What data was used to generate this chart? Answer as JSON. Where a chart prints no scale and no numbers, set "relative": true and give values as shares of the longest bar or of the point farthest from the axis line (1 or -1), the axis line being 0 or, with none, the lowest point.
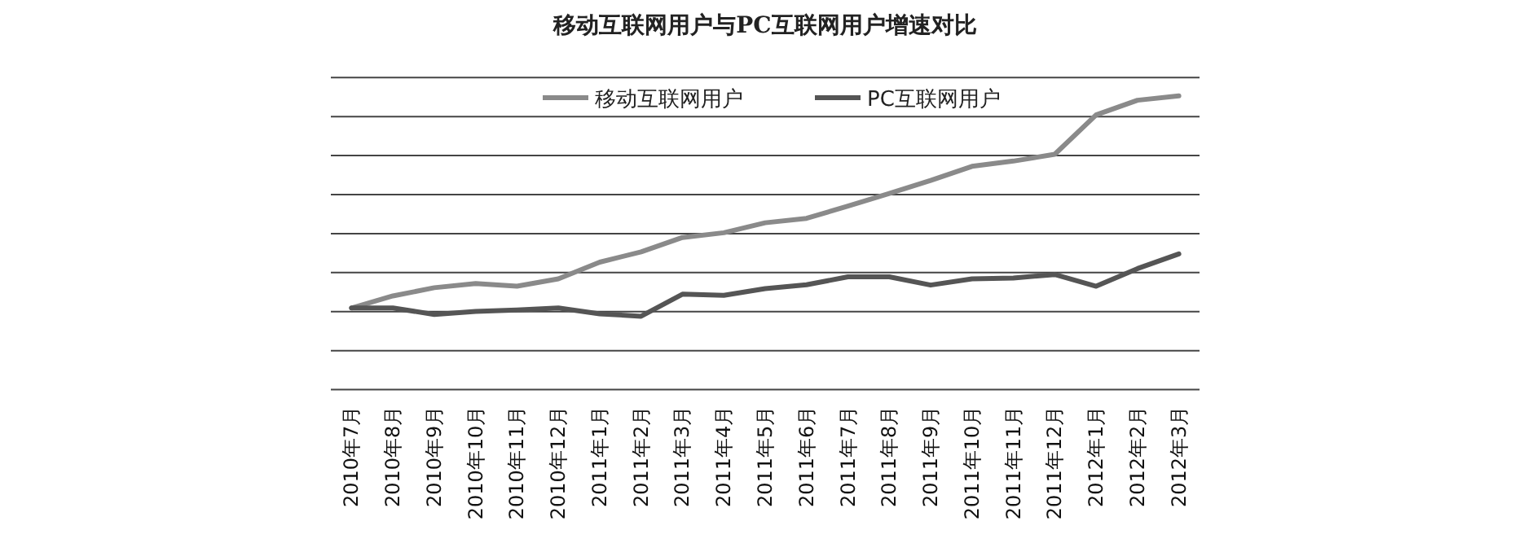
{
  "chart_data": {
    "type": "line",
    "title": "移动互联网用户与PC互联网用户增速对比",
    "relative": true,
    "grid": "y",
    "legend": "top",
    "marker": "none",
    "line_style": "solid",
    "categories": [
      "2010年7月",
      "2010年8月",
      "2010年9月",
      "2010年10月",
      "2010年11月",
      "2010年12月",
      "2011年1月",
      "2011年2月",
      "2011年3月",
      "2011年4月",
      "2011年5月",
      "2011年6月",
      "2011年7月",
      "2011年8月",
      "2011年9月",
      "2011年10月",
      "2011年11月",
      "2011年12月",
      "2012年1月",
      "2012年2月",
      "2012年3月"
    ],
    "series": [
      {
        "name": "移动互联网用户",
        "color": "#8a8a8a",
        "values": [
          0.278,
          0.319,
          0.347,
          0.361,
          0.352,
          0.377,
          0.434,
          0.469,
          0.518,
          0.534,
          0.568,
          0.583,
          0.625,
          0.668,
          0.712,
          0.76,
          0.778,
          0.801,
          0.935,
          0.985,
          1
        ]
      },
      {
        "name": "PC互联网用户",
        "color": "#555555",
        "values": [
          0.278,
          0.278,
          0.256,
          0.266,
          0.271,
          0.278,
          0.258,
          0.25,
          0.325,
          0.321,
          0.344,
          0.357,
          0.384,
          0.384,
          0.356,
          0.377,
          0.38,
          0.392,
          0.352,
          0.412,
          0.462
        ]
      }
    ]
  }
}
